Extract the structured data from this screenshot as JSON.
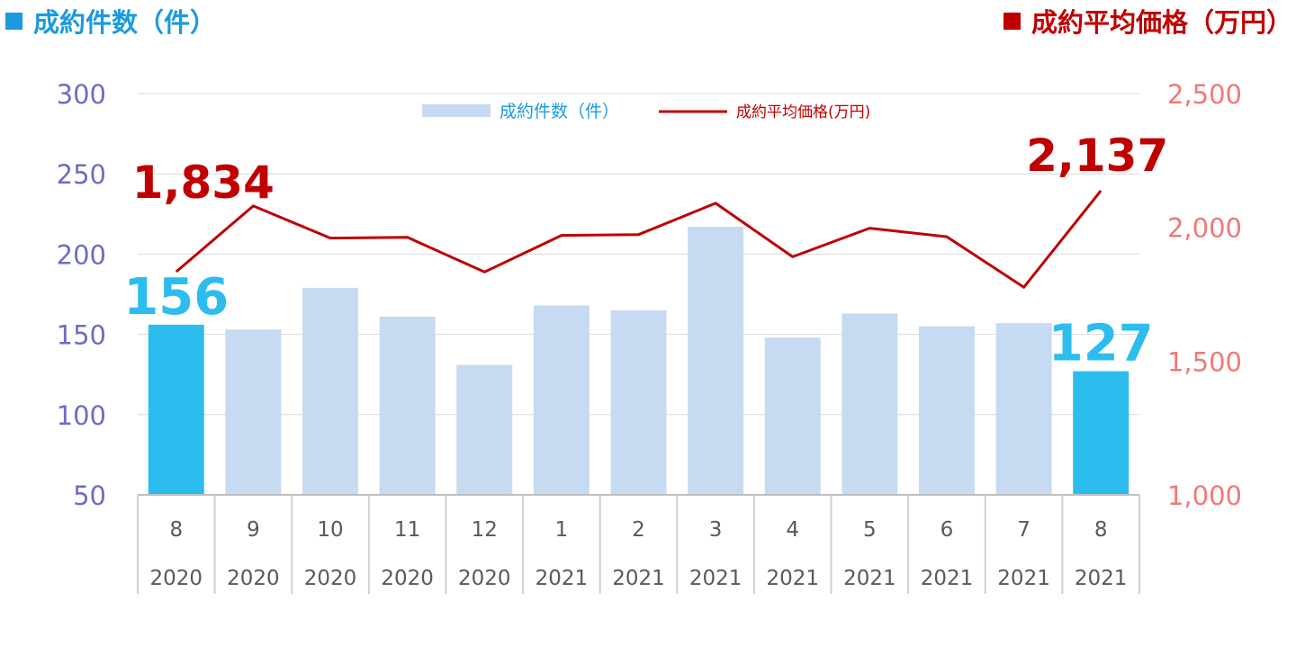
{
  "headers": {
    "left": "成約件数（件）",
    "right": "成約平均価格（万円）"
  },
  "colors": {
    "bar": "#c6dbf2",
    "bar_highlight": "#2cbdee",
    "line": "#c00000",
    "left_axis": "#6c6cc8",
    "right_axis": "#f07878",
    "left_header": "#1a9ae0",
    "right_header": "#c00000",
    "grid": "#d9d9d9",
    "category_text": "#595959"
  },
  "chart_data": {
    "type": "bar",
    "categories": [
      "8",
      "9",
      "10",
      "11",
      "12",
      "1",
      "2",
      "3",
      "4",
      "5",
      "6",
      "7",
      "8"
    ],
    "category_years": [
      "2020",
      "2020",
      "2020",
      "2020",
      "2020",
      "2021",
      "2021",
      "2021",
      "2021",
      "2021",
      "2021",
      "2021",
      "2021"
    ],
    "series": [
      {
        "name": "成約件数（件）",
        "type": "bar",
        "axis": "left",
        "values": [
          156,
          153,
          179,
          161,
          131,
          168,
          165,
          217,
          148,
          163,
          155,
          157,
          127
        ],
        "highlight": [
          true,
          false,
          false,
          false,
          false,
          false,
          false,
          false,
          false,
          false,
          false,
          false,
          true
        ]
      },
      {
        "name": "成約平均価格(万円)",
        "type": "line",
        "axis": "right",
        "values": [
          1834,
          2080,
          1960,
          1963,
          1833,
          1970,
          1973,
          2090,
          1890,
          1997,
          1965,
          1776,
          2137
        ]
      }
    ],
    "left_axis": {
      "ylim": [
        50,
        300
      ],
      "ticks": [
        "50",
        "100",
        "150",
        "200",
        "250",
        "300"
      ]
    },
    "right_axis": {
      "ylim": [
        1000,
        2500
      ],
      "ticks": [
        "1,000",
        "1,500",
        "2,000",
        "2,500"
      ]
    },
    "annotations": {
      "bar_first": "156",
      "bar_last": "127",
      "line_first": "1,834",
      "line_last": "2,137"
    },
    "grid": true,
    "legend_position": "top-center"
  }
}
